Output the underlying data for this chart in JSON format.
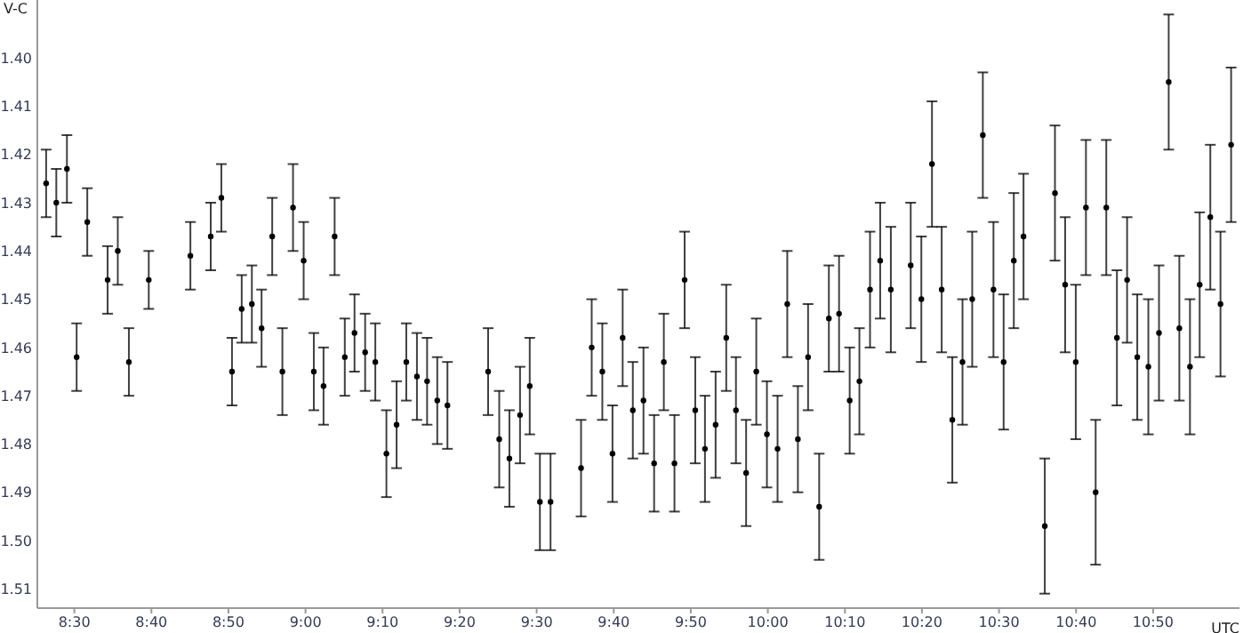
{
  "chart_data": {
    "type": "scatter",
    "xlabel": "UTC",
    "ylabel": "V-C",
    "x": [
      8.439,
      8.461,
      8.484,
      8.505,
      8.528,
      8.572,
      8.594,
      8.618,
      8.661,
      8.751,
      8.795,
      8.818,
      8.841,
      8.862,
      8.884,
      8.905,
      8.928,
      8.95,
      8.973,
      8.996,
      9.018,
      9.039,
      9.063,
      9.085,
      9.106,
      9.129,
      9.151,
      9.175,
      9.197,
      9.218,
      9.241,
      9.263,
      9.285,
      9.307,
      9.395,
      9.419,
      9.441,
      9.464,
      9.485,
      9.507,
      9.53,
      9.596,
      9.619,
      9.642,
      9.664,
      9.686,
      9.708,
      9.731,
      9.754,
      9.775,
      9.798,
      9.82,
      9.843,
      9.864,
      9.887,
      9.91,
      9.931,
      9.953,
      9.975,
      9.998,
      10.021,
      10.042,
      10.065,
      10.087,
      10.111,
      10.132,
      10.154,
      10.177,
      10.198,
      10.221,
      10.243,
      10.266,
      10.309,
      10.332,
      10.355,
      10.376,
      10.399,
      10.421,
      10.442,
      10.465,
      10.488,
      10.51,
      10.532,
      10.553,
      10.599,
      10.621,
      10.643,
      10.666,
      10.688,
      10.709,
      10.732,
      10.755,
      10.777,
      10.799,
      10.823,
      10.846,
      10.867,
      10.89,
      10.913,
      10.934,
      10.957,
      10.979,
      11.002
    ],
    "series": [
      {
        "color": "#000000",
        "values": [
          1.426,
          1.43,
          1.423,
          1.462,
          1.434,
          1.446,
          1.44,
          1.463,
          1.446,
          1.441,
          1.437,
          1.429,
          1.465,
          1.452,
          1.451,
          1.456,
          1.437,
          1.465,
          1.431,
          1.442,
          1.465,
          1.468,
          1.437,
          1.462,
          1.457,
          1.461,
          1.463,
          1.482,
          1.476,
          1.463,
          1.466,
          1.467,
          1.471,
          1.472,
          1.465,
          1.479,
          1.483,
          1.474,
          1.468,
          1.492,
          1.492,
          1.485,
          1.46,
          1.465,
          1.482,
          1.458,
          1.473,
          1.471,
          1.484,
          1.463,
          1.484,
          1.446,
          1.473,
          1.481,
          1.476,
          1.458,
          1.473,
          1.486,
          1.465,
          1.478,
          1.481,
          1.451,
          1.479,
          1.462,
          1.493,
          1.454,
          1.453,
          1.471,
          1.467,
          1.448,
          1.442,
          1.448,
          1.443,
          1.45,
          1.422,
          1.448,
          1.475,
          1.463,
          1.45,
          1.416,
          1.448,
          1.463,
          1.442,
          1.437,
          1.497,
          1.428,
          1.447,
          1.463,
          1.431,
          1.49,
          1.431,
          1.458,
          1.446,
          1.462,
          1.464,
          1.457,
          1.405,
          1.456,
          1.464,
          1.447,
          1.433,
          1.451,
          1.418
        ],
        "errors": [
          0.007,
          0.007,
          0.007,
          0.007,
          0.007,
          0.007,
          0.007,
          0.007,
          0.006,
          0.007,
          0.007,
          0.007,
          0.007,
          0.007,
          0.008,
          0.008,
          0.008,
          0.009,
          0.009,
          0.008,
          0.008,
          0.008,
          0.008,
          0.008,
          0.008,
          0.008,
          0.008,
          0.009,
          0.009,
          0.008,
          0.009,
          0.009,
          0.009,
          0.009,
          0.009,
          0.01,
          0.01,
          0.01,
          0.01,
          0.01,
          0.01,
          0.01,
          0.01,
          0.01,
          0.01,
          0.01,
          0.01,
          0.011,
          0.01,
          0.01,
          0.01,
          0.01,
          0.011,
          0.011,
          0.011,
          0.011,
          0.011,
          0.011,
          0.011,
          0.011,
          0.011,
          0.011,
          0.011,
          0.011,
          0.011,
          0.011,
          0.012,
          0.011,
          0.011,
          0.012,
          0.012,
          0.013,
          0.013,
          0.013,
          0.013,
          0.013,
          0.013,
          0.013,
          0.014,
          0.013,
          0.014,
          0.014,
          0.014,
          0.013,
          0.014,
          0.014,
          0.014,
          0.016,
          0.014,
          0.015,
          0.014,
          0.014,
          0.013,
          0.013,
          0.014,
          0.014,
          0.014,
          0.015,
          0.014,
          0.015,
          0.015,
          0.015,
          0.016
        ]
      }
    ],
    "xlim": [
      8.42,
      11.02
    ],
    "ylim": [
      1.514,
      1.388
    ],
    "xticks": [
      {
        "value": 8.5,
        "label": "8:30"
      },
      {
        "value": 8.6667,
        "label": "8:40"
      },
      {
        "value": 8.8333,
        "label": "8:50"
      },
      {
        "value": 9,
        "label": "9:00"
      },
      {
        "value": 9.1667,
        "label": "9:10"
      },
      {
        "value": 9.3333,
        "label": "9:20"
      },
      {
        "value": 9.5,
        "label": "9:30"
      },
      {
        "value": 9.6667,
        "label": "9:40"
      },
      {
        "value": 9.8333,
        "label": "9:50"
      },
      {
        "value": 10,
        "label": "10:00"
      },
      {
        "value": 10.1667,
        "label": "10:10"
      },
      {
        "value": 10.3333,
        "label": "10:20"
      },
      {
        "value": 10.5,
        "label": "10:30"
      },
      {
        "value": 10.6667,
        "label": "10:40"
      },
      {
        "value": 10.8333,
        "label": "10:50"
      }
    ],
    "yticks": [
      {
        "value": 1.4,
        "label": "1.40"
      },
      1.41,
      1.42,
      1.43,
      1.44,
      1.45,
      1.46,
      1.47,
      1.48,
      1.49,
      {
        "value": 1.5,
        "label": "1.50"
      },
      1.51
    ],
    "grid": false,
    "legend": false,
    "marker": "circle"
  }
}
